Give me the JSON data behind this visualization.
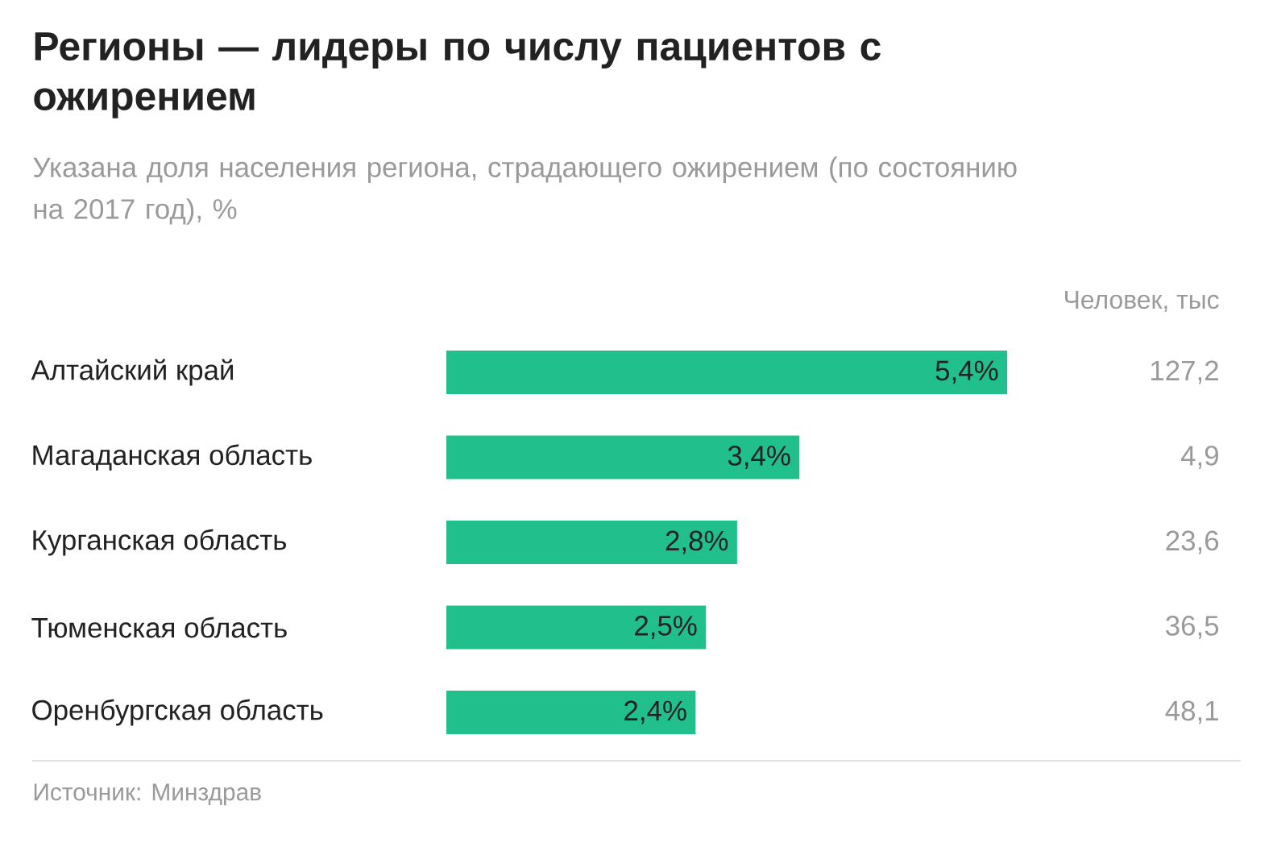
{
  "chart_data": {
    "type": "bar",
    "orientation": "horizontal",
    "title": "Регионы — лидеры по числу пациентов с ожирением",
    "subtitle": "Указана доля населения региона, страдающего ожирением (по состоянию на 2017 год), %",
    "categories": [
      "Алтайский край",
      "Магаданская область",
      "Курганская область",
      "Тюменская область",
      "Оренбургская область"
    ],
    "values": [
      5.4,
      3.4,
      2.8,
      2.5,
      2.4
    ],
    "value_labels": [
      "5,4%",
      "3,4%",
      "2,8%",
      "2,5%",
      "2,4%"
    ],
    "color": "#21bf8b",
    "xlim": [
      0,
      5.4
    ],
    "tick_labels": "y",
    "annotations": [
      "Человек, тыс",
      "127,2",
      "4,9",
      "23,6",
      "36,5",
      "48,1",
      "Источник: Минздрав"
    ]
  }
}
